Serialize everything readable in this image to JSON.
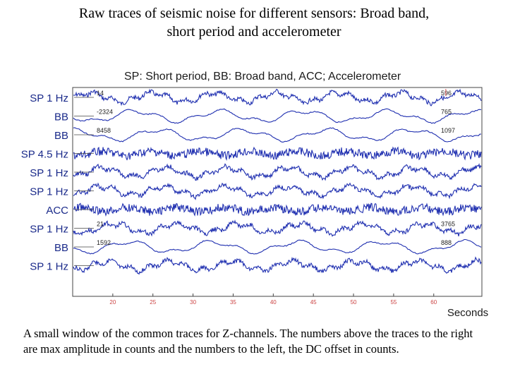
{
  "title_lines": [
    "Raw traces of seismic noise for different sensors: Broad band,",
    "short period and accelerometer"
  ],
  "caption": "A small window of the common traces for  Z-channels. The numbers above the traces to the right are max amplitude in counts and the numbers to the left, the DC offset in counts.",
  "colors": {
    "trace": "#1f2fb0",
    "axis": "#444444",
    "tick_label": "#cc4444",
    "marker": "#e07070"
  },
  "chart_data": {
    "type": "line",
    "title": "SP: Short period, BB: Broad band, ACC; Accelerometer",
    "xlabel": "Seconds",
    "ylabel": "",
    "xlim": [
      15,
      66
    ],
    "x_ticks": [
      20,
      25,
      30,
      35,
      40,
      45,
      50,
      55,
      60
    ],
    "grid": false,
    "legend": "none",
    "series": [
      {
        "name": "SP 1 Hz",
        "dc_offset": "14",
        "max_amplitude": "596"
      },
      {
        "name": "BB",
        "dc_offset": "-2324",
        "max_amplitude": "765"
      },
      {
        "name": "BB",
        "dc_offset": "8458",
        "max_amplitude": "1097"
      },
      {
        "name": "SP 4.5 Hz",
        "dc_offset": "",
        "max_amplitude": ""
      },
      {
        "name": "SP 1 Hz",
        "dc_offset": "",
        "max_amplitude": ""
      },
      {
        "name": "SP 1 Hz",
        "dc_offset": "",
        "max_amplitude": ""
      },
      {
        "name": "ACC",
        "dc_offset": "",
        "max_amplitude": ""
      },
      {
        "name": "SP 1 Hz",
        "dc_offset": "21",
        "max_amplitude": "3765"
      },
      {
        "name": "BB",
        "dc_offset": "1592",
        "max_amplitude": "888"
      },
      {
        "name": "SP 1 Hz",
        "dc_offset": "",
        "max_amplitude": ""
      }
    ]
  }
}
